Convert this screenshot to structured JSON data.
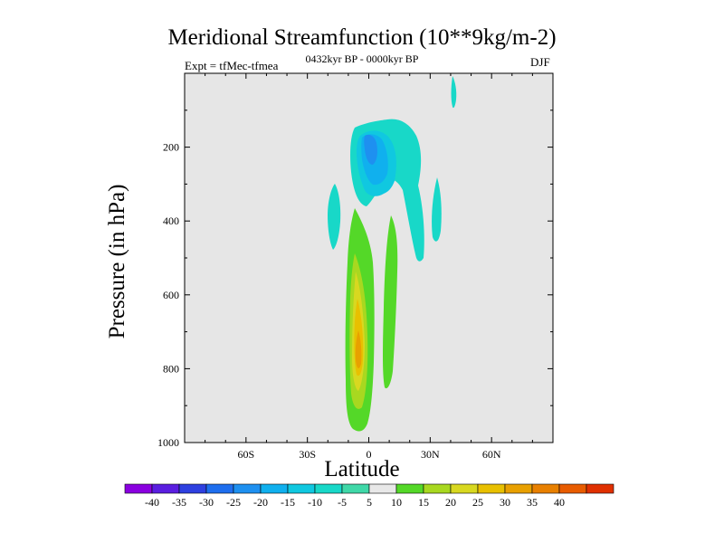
{
  "chart_data": {
    "type": "contour",
    "title": "Meridional Streamfunction (10**9kg/m-2)",
    "subtitle_left": "Expt = tfMec-tfmea",
    "subtitle_center": "0432kyr BP - 0000kyr BP",
    "subtitle_right": "DJF",
    "xlabel": "Latitude",
    "ylabel": "Pressure (in hPa)",
    "xlim": [
      -90,
      90
    ],
    "ylim": [
      1000,
      0
    ],
    "x_ticks": [
      {
        "value": -60,
        "label": "60S"
      },
      {
        "value": -30,
        "label": "30S"
      },
      {
        "value": 0,
        "label": "0"
      },
      {
        "value": 30,
        "label": "30N"
      },
      {
        "value": 60,
        "label": "60N"
      }
    ],
    "y_ticks": [
      200,
      400,
      600,
      800,
      1000
    ],
    "colorbar": {
      "labels": [
        "-40",
        "-35",
        "-30",
        "-25",
        "-20",
        "-15",
        "-10",
        "-5",
        "5",
        "10",
        "15",
        "20",
        "25",
        "30",
        "35",
        "40"
      ],
      "colors": [
        "#8A00E0",
        "#5A1EE0",
        "#2E40E0",
        "#1E6EEE",
        "#1E90F0",
        "#10B0EE",
        "#10C8E0",
        "#18D8C8",
        "#40D8A8",
        "#E8E8E8",
        "#54D828",
        "#A8D820",
        "#D8D820",
        "#E8C000",
        "#E8A000",
        "#E88000",
        "#E85C00",
        "#E03000"
      ]
    },
    "features": [
      {
        "name": "upper-negative-cell",
        "sign": "negative",
        "min_value": -20,
        "lat_range": [
          -15,
          20
        ],
        "pressure_range": [
          110,
          360
        ]
      },
      {
        "name": "upper-negative-tail",
        "sign": "negative",
        "min_value": -5,
        "lat_range": [
          18,
          40
        ],
        "pressure_range": [
          180,
          600
        ]
      },
      {
        "name": "left-negative-sliver",
        "sign": "negative",
        "min_value": -5,
        "lat_range": [
          -20,
          -15
        ],
        "pressure_range": [
          290,
          460
        ]
      },
      {
        "name": "top-negative-sliver",
        "sign": "negative",
        "min_value": -5,
        "lat_range": [
          41,
          44
        ],
        "pressure_range": [
          0,
          90
        ]
      },
      {
        "name": "right-negative-sliver",
        "sign": "negative",
        "min_value": -5,
        "lat_range": [
          34,
          38
        ],
        "pressure_range": [
          280,
          450
        ]
      },
      {
        "name": "lower-positive-cell",
        "sign": "positive",
        "max_value": 25,
        "lat_range": [
          -12,
          4
        ],
        "pressure_range": [
          400,
          980
        ]
      },
      {
        "name": "lower-positive-secondary",
        "sign": "positive",
        "max_value": 5,
        "lat_range": [
          8,
          16
        ],
        "pressure_range": [
          480,
          870
        ]
      }
    ]
  }
}
